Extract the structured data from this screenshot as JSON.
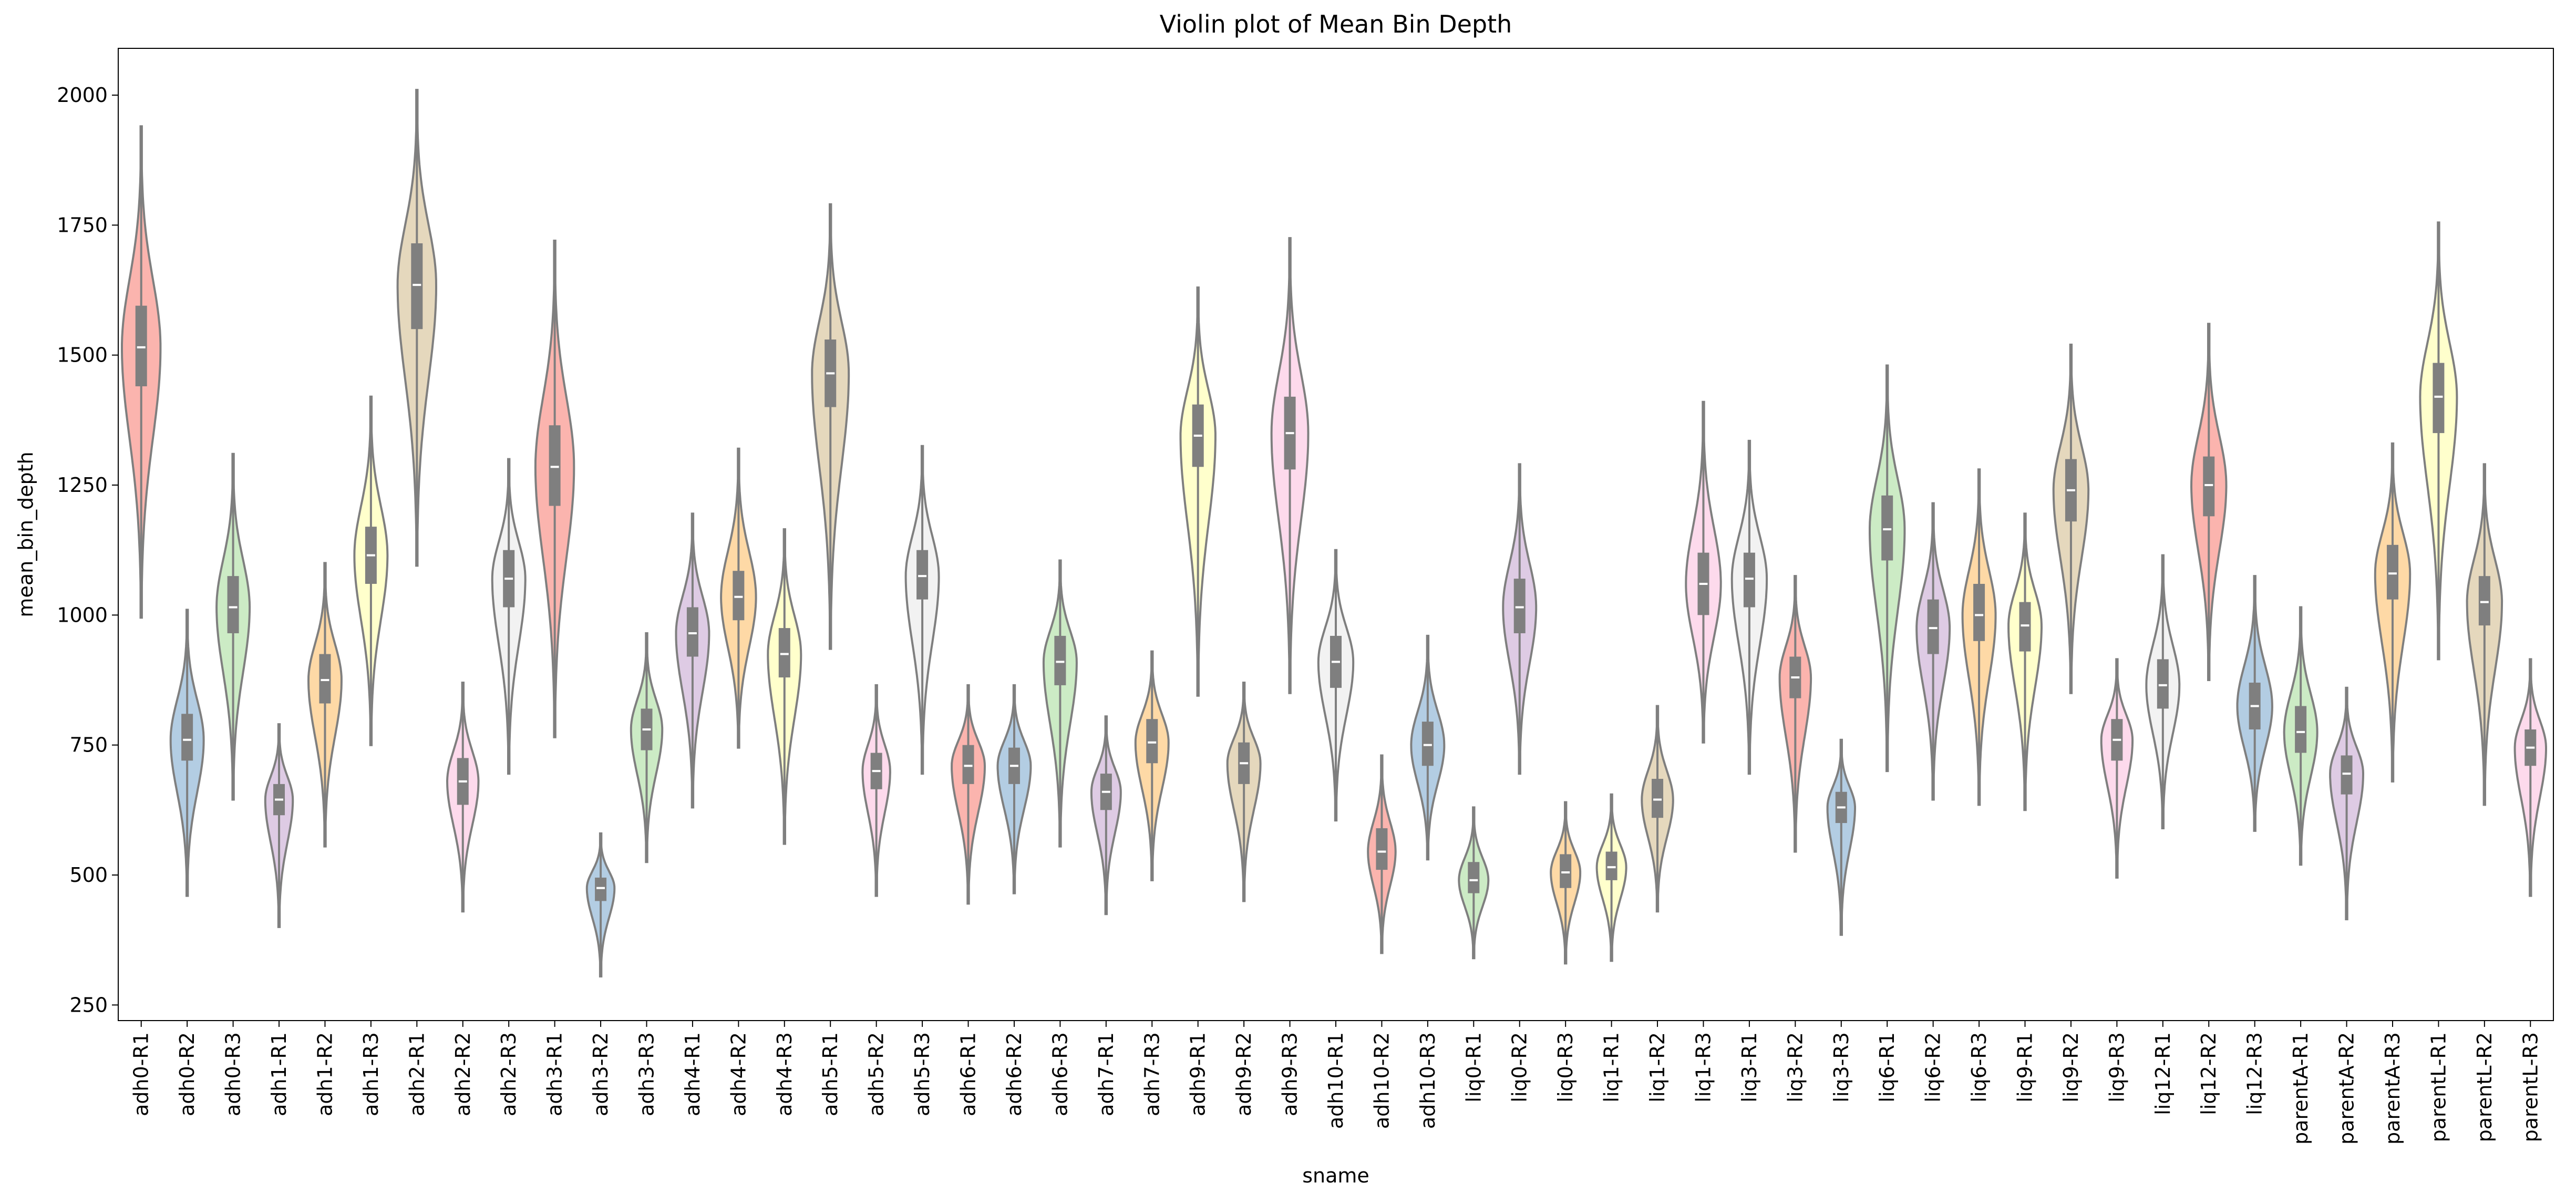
{
  "chart_data": {
    "type": "violin",
    "title": "Violin plot of Mean Bin Depth",
    "xlabel": "sname",
    "ylabel": "mean_bin_depth",
    "ylim": [
      220,
      2090
    ],
    "yticks": [
      250,
      500,
      750,
      1000,
      1250,
      1500,
      1750,
      2000
    ],
    "grid": false,
    "palette": [
      "#fbb4ae",
      "#b3cde3",
      "#ccebc5",
      "#decbe4",
      "#fed9a6",
      "#ffffcc",
      "#e5d8bd",
      "#fddaec",
      "#f2f2f2"
    ],
    "edge_color": "#7f7f7f",
    "categories": [
      "adh0-R1",
      "adh0-R2",
      "adh0-R3",
      "adh1-R1",
      "adh1-R2",
      "adh1-R3",
      "adh2-R1",
      "adh2-R2",
      "adh2-R3",
      "adh3-R1",
      "adh3-R2",
      "adh3-R3",
      "adh4-R1",
      "adh4-R2",
      "adh4-R3",
      "adh5-R1",
      "adh5-R2",
      "adh5-R3",
      "adh6-R1",
      "adh6-R2",
      "adh6-R3",
      "adh7-R1",
      "adh7-R3",
      "adh9-R1",
      "adh9-R2",
      "adh9-R3",
      "adh10-R1",
      "adh10-R2",
      "adh10-R3",
      "liq0-R1",
      "liq0-R2",
      "liq0-R3",
      "liq1-R1",
      "liq1-R2",
      "liq1-R3",
      "liq3-R1",
      "liq3-R2",
      "liq3-R3",
      "liq6-R1",
      "liq6-R2",
      "liq6-R3",
      "liq9-R1",
      "liq9-R2",
      "liq9-R3",
      "liq12-R1",
      "liq12-R2",
      "liq12-R3",
      "parentA-R1",
      "parentA-R2",
      "parentA-R3",
      "parentL-R1",
      "parentL-R2",
      "parentL-R3"
    ],
    "series": [
      {
        "min": 995,
        "q1": 1440,
        "median": 1515,
        "q3": 1595,
        "max": 1940,
        "width": 0.42
      },
      {
        "min": 460,
        "q1": 720,
        "median": 760,
        "q3": 810,
        "max": 1010,
        "width": 0.36
      },
      {
        "min": 645,
        "q1": 965,
        "median": 1015,
        "q3": 1075,
        "max": 1310,
        "width": 0.36
      },
      {
        "min": 400,
        "q1": 615,
        "median": 645,
        "q3": 675,
        "max": 790,
        "width": 0.3
      },
      {
        "min": 555,
        "q1": 830,
        "median": 875,
        "q3": 925,
        "max": 1100,
        "width": 0.36
      },
      {
        "min": 750,
        "q1": 1060,
        "median": 1115,
        "q3": 1170,
        "max": 1420,
        "width": 0.36
      },
      {
        "min": 1095,
        "q1": 1550,
        "median": 1635,
        "q3": 1715,
        "max": 2010,
        "width": 0.42
      },
      {
        "min": 430,
        "q1": 635,
        "median": 680,
        "q3": 725,
        "max": 870,
        "width": 0.34
      },
      {
        "min": 695,
        "q1": 1015,
        "median": 1070,
        "q3": 1125,
        "max": 1300,
        "width": 0.36
      },
      {
        "min": 765,
        "q1": 1210,
        "median": 1285,
        "q3": 1365,
        "max": 1720,
        "width": 0.42
      },
      {
        "min": 305,
        "q1": 450,
        "median": 475,
        "q3": 495,
        "max": 580,
        "width": 0.3
      },
      {
        "min": 525,
        "q1": 740,
        "median": 780,
        "q3": 820,
        "max": 965,
        "width": 0.34
      },
      {
        "min": 630,
        "q1": 920,
        "median": 965,
        "q3": 1015,
        "max": 1195,
        "width": 0.36
      },
      {
        "min": 745,
        "q1": 990,
        "median": 1035,
        "q3": 1085,
        "max": 1320,
        "width": 0.38
      },
      {
        "min": 560,
        "q1": 880,
        "median": 925,
        "q3": 975,
        "max": 1165,
        "width": 0.36
      },
      {
        "min": 935,
        "q1": 1400,
        "median": 1465,
        "q3": 1530,
        "max": 1790,
        "width": 0.4
      },
      {
        "min": 460,
        "q1": 665,
        "median": 700,
        "q3": 735,
        "max": 865,
        "width": 0.3
      },
      {
        "min": 695,
        "q1": 1030,
        "median": 1075,
        "q3": 1125,
        "max": 1325,
        "width": 0.36
      },
      {
        "min": 445,
        "q1": 675,
        "median": 710,
        "q3": 750,
        "max": 865,
        "width": 0.36
      },
      {
        "min": 465,
        "q1": 675,
        "median": 710,
        "q3": 745,
        "max": 865,
        "width": 0.36
      },
      {
        "min": 555,
        "q1": 865,
        "median": 910,
        "q3": 960,
        "max": 1105,
        "width": 0.36
      },
      {
        "min": 425,
        "q1": 625,
        "median": 660,
        "q3": 695,
        "max": 805,
        "width": 0.32
      },
      {
        "min": 490,
        "q1": 715,
        "median": 755,
        "q3": 800,
        "max": 930,
        "width": 0.36
      },
      {
        "min": 845,
        "q1": 1285,
        "median": 1345,
        "q3": 1405,
        "max": 1630,
        "width": 0.38
      },
      {
        "min": 450,
        "q1": 675,
        "median": 715,
        "q3": 755,
        "max": 870,
        "width": 0.36
      },
      {
        "min": 850,
        "q1": 1280,
        "median": 1350,
        "q3": 1420,
        "max": 1725,
        "width": 0.4
      },
      {
        "min": 605,
        "q1": 860,
        "median": 910,
        "q3": 960,
        "max": 1125,
        "width": 0.38
      },
      {
        "min": 350,
        "q1": 510,
        "median": 545,
        "q3": 590,
        "max": 730,
        "width": 0.3
      },
      {
        "min": 530,
        "q1": 710,
        "median": 750,
        "q3": 795,
        "max": 960,
        "width": 0.36
      },
      {
        "min": 340,
        "q1": 465,
        "median": 490,
        "q3": 525,
        "max": 630,
        "width": 0.32
      },
      {
        "min": 695,
        "q1": 965,
        "median": 1015,
        "q3": 1070,
        "max": 1290,
        "width": 0.36
      },
      {
        "min": 330,
        "q1": 475,
        "median": 505,
        "q3": 540,
        "max": 640,
        "width": 0.32
      },
      {
        "min": 335,
        "q1": 490,
        "median": 515,
        "q3": 545,
        "max": 655,
        "width": 0.32
      },
      {
        "min": 430,
        "q1": 610,
        "median": 645,
        "q3": 685,
        "max": 825,
        "width": 0.34
      },
      {
        "min": 755,
        "q1": 1000,
        "median": 1060,
        "q3": 1120,
        "max": 1410,
        "width": 0.38
      },
      {
        "min": 695,
        "q1": 1015,
        "median": 1070,
        "q3": 1120,
        "max": 1335,
        "width": 0.38
      },
      {
        "min": 545,
        "q1": 840,
        "median": 880,
        "q3": 920,
        "max": 1075,
        "width": 0.34
      },
      {
        "min": 385,
        "q1": 600,
        "median": 630,
        "q3": 660,
        "max": 760,
        "width": 0.3
      },
      {
        "min": 700,
        "q1": 1105,
        "median": 1165,
        "q3": 1230,
        "max": 1480,
        "width": 0.38
      },
      {
        "min": 645,
        "q1": 925,
        "median": 975,
        "q3": 1030,
        "max": 1215,
        "width": 0.36
      },
      {
        "min": 635,
        "q1": 950,
        "median": 1000,
        "q3": 1060,
        "max": 1280,
        "width": 0.36
      },
      {
        "min": 625,
        "q1": 930,
        "median": 980,
        "q3": 1025,
        "max": 1195,
        "width": 0.36
      },
      {
        "min": 850,
        "q1": 1180,
        "median": 1240,
        "q3": 1300,
        "max": 1520,
        "width": 0.38
      },
      {
        "min": 495,
        "q1": 720,
        "median": 760,
        "q3": 800,
        "max": 915,
        "width": 0.34
      },
      {
        "min": 590,
        "q1": 820,
        "median": 865,
        "q3": 915,
        "max": 1115,
        "width": 0.36
      },
      {
        "min": 875,
        "q1": 1190,
        "median": 1250,
        "q3": 1305,
        "max": 1560,
        "width": 0.38
      },
      {
        "min": 585,
        "q1": 780,
        "median": 825,
        "q3": 870,
        "max": 1075,
        "width": 0.38
      },
      {
        "min": 520,
        "q1": 735,
        "median": 775,
        "q3": 825,
        "max": 1015,
        "width": 0.36
      },
      {
        "min": 415,
        "q1": 655,
        "median": 695,
        "q3": 730,
        "max": 860,
        "width": 0.36
      },
      {
        "min": 680,
        "q1": 1030,
        "median": 1080,
        "q3": 1135,
        "max": 1330,
        "width": 0.38
      },
      {
        "min": 915,
        "q1": 1350,
        "median": 1420,
        "q3": 1485,
        "max": 1755,
        "width": 0.4
      },
      {
        "min": 635,
        "q1": 980,
        "median": 1025,
        "q3": 1075,
        "max": 1290,
        "width": 0.38
      },
      {
        "min": 460,
        "q1": 710,
        "median": 745,
        "q3": 780,
        "max": 915,
        "width": 0.34
      }
    ]
  }
}
